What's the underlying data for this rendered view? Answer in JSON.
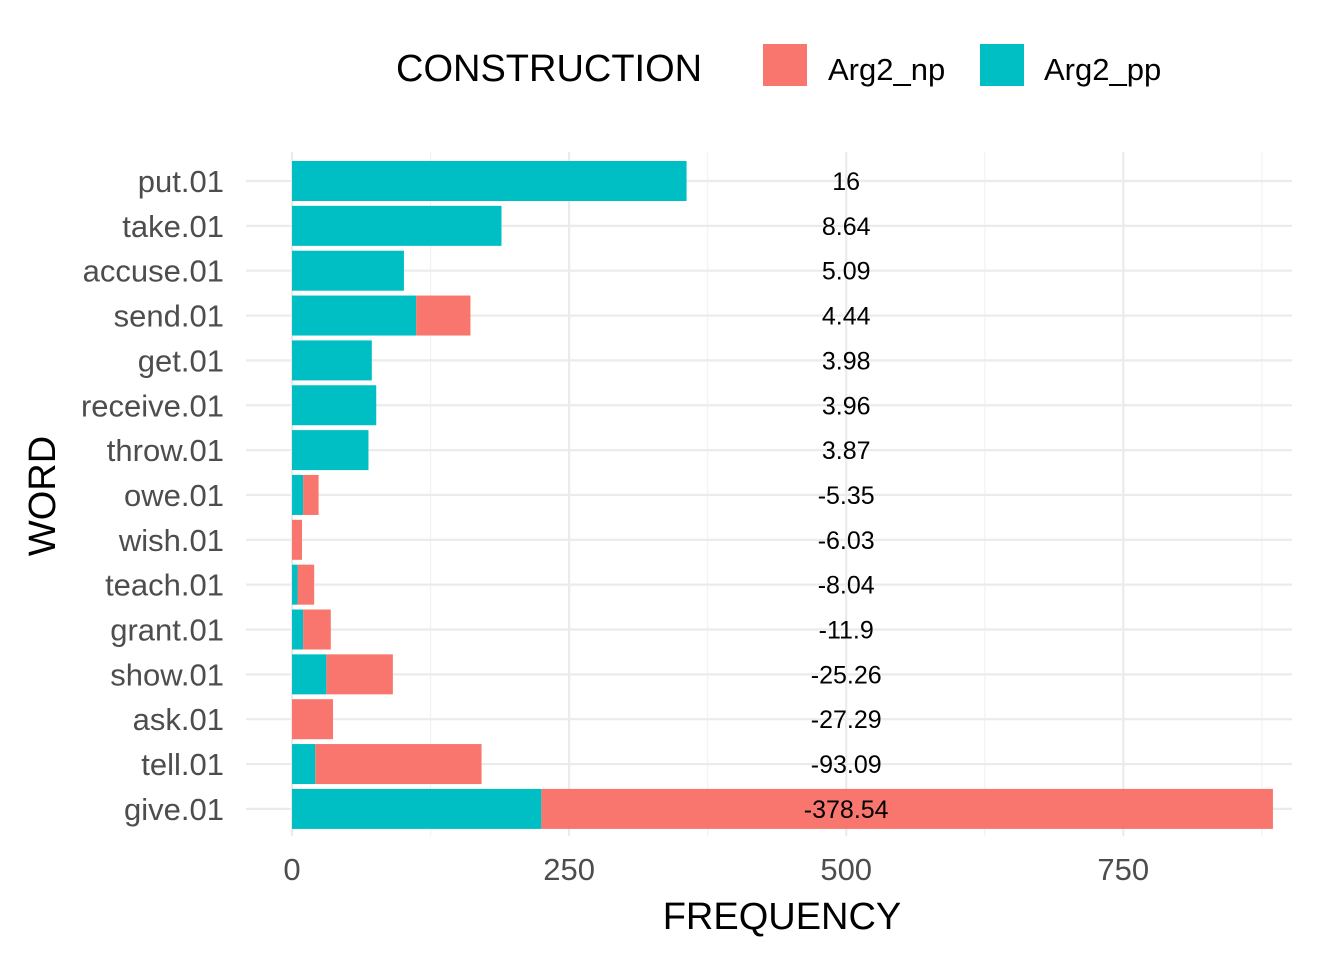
{
  "chart_data": {
    "type": "bar",
    "orientation": "horizontal",
    "stacked": true,
    "xlabel": "FREQUENCY",
    "ylabel": "WORD",
    "xlim": [
      0,
      890
    ],
    "x_ticks": [
      0,
      250,
      500,
      750
    ],
    "grid": true,
    "legend": {
      "title": "CONSTRUCTION",
      "position": "top",
      "entries": [
        {
          "name": "Arg2_np",
          "color": "#F8766D"
        },
        {
          "name": "Arg2_pp",
          "color": "#00BFC4"
        }
      ]
    },
    "annotation_x": 500,
    "categories": [
      "put.01",
      "take.01",
      "accuse.01",
      "send.01",
      "get.01",
      "receive.01",
      "throw.01",
      "owe.01",
      "wish.01",
      "teach.01",
      "grant.01",
      "show.01",
      "ask.01",
      "tell.01",
      "give.01"
    ],
    "series": [
      {
        "name": "Arg2_pp",
        "color": "#00BFC4",
        "values": [
          356,
          189,
          101,
          112,
          72,
          76,
          69,
          10,
          0,
          5,
          10,
          31,
          0,
          21,
          225
        ]
      },
      {
        "name": "Arg2_np",
        "color": "#F8766D",
        "values": [
          0,
          0,
          0,
          49,
          0,
          0,
          0,
          14,
          9,
          15,
          25,
          60,
          37,
          150,
          660
        ]
      }
    ],
    "labels": [
      "16",
      "8.64",
      "5.09",
      "4.44",
      "3.98",
      "3.96",
      "3.87",
      "-5.35",
      "-6.03",
      "-8.04",
      "-11.9",
      "-25.26",
      "-27.29",
      "-93.09",
      "-378.54"
    ]
  }
}
